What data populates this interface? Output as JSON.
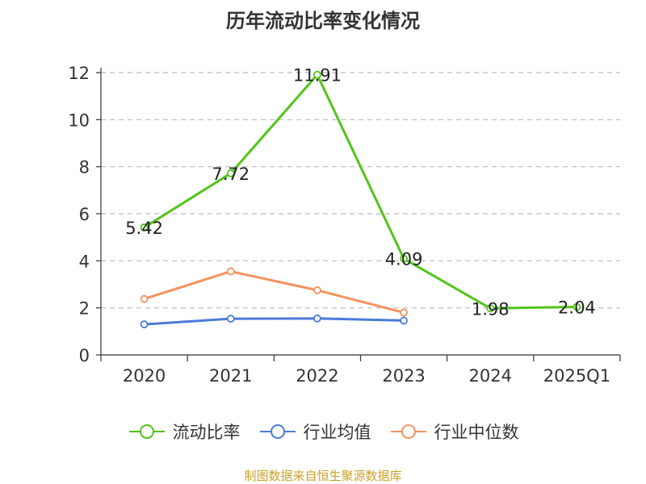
{
  "chart_data": {
    "type": "line",
    "title": "历年流动比率变化情况",
    "categories": [
      "2020",
      "2021",
      "2022",
      "2023",
      "2024",
      "2025Q1"
    ],
    "ylim": [
      0,
      12
    ],
    "yticks": [
      0,
      2,
      4,
      6,
      8,
      10,
      12
    ],
    "grid": true,
    "legend_position": "bottom",
    "series": [
      {
        "name": "流动比率",
        "color": "#52c41a",
        "values": [
          5.42,
          7.72,
          11.91,
          4.09,
          1.98,
          2.04
        ],
        "labels": [
          "5.42",
          "7.72",
          "11.91",
          "4.09",
          "1.98",
          "2.04"
        ]
      },
      {
        "name": "行业均值",
        "color": "#4a7bd8",
        "values": [
          1.3,
          1.54,
          1.55,
          1.46,
          null,
          null
        ]
      },
      {
        "name": "行业中位数",
        "color": "#f5925e",
        "values": [
          2.38,
          3.55,
          2.75,
          1.8,
          null,
          null
        ]
      }
    ]
  },
  "source": "制图数据来自恒生聚源数据库"
}
